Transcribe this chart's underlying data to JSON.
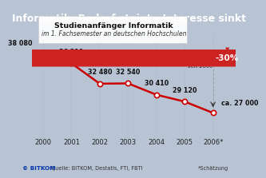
{
  "years": [
    "2000",
    "2001",
    "2002",
    "2003",
    "2004",
    "2005",
    "2006*"
  ],
  "values": [
    38080,
    36310,
    32480,
    32540,
    30410,
    29120,
    27000
  ],
  "x_positions": [
    0,
    1,
    2,
    3,
    4,
    5,
    6
  ],
  "title_main": "Informatik: Bedarf steigt - Interesse sinkt",
  "title_sub1": "Studienanfänger Informatik",
  "title_sub2": "im 1. Fachsemester an deutschen Hochschulen",
  "line_color": "#cc0000",
  "marker_color": "#cc0000",
  "bg_color": "#b8c4d4",
  "photo_overlay": "#c5d0df",
  "header_bg": "#cc2222",
  "header_text_color": "#ffffff",
  "footer_text": "Quelle: BITKOM, Destatis, FTI, FBTI",
  "footer_right": "*Schätzung",
  "change_label": "Veränderung\nseit 2000",
  "change_value": "-30%",
  "last_label": "ca. 27 000",
  "dashed_line_color": "#999999",
  "ylim_min": 22000,
  "ylim_max": 42000,
  "value_labels": [
    "38 080",
    "36 310",
    "32 480",
    "32 540",
    "30 410",
    "29 120",
    "ca. 27 000"
  ]
}
